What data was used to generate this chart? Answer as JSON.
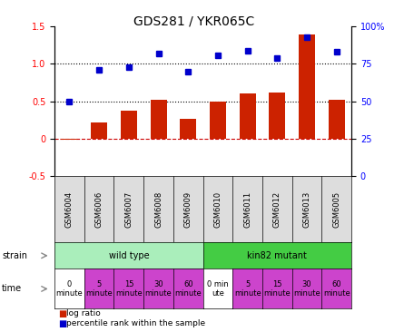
{
  "title": "GDS281 / YKR065C",
  "samples": [
    "GSM6004",
    "GSM6006",
    "GSM6007",
    "GSM6008",
    "GSM6009",
    "GSM6010",
    "GSM6011",
    "GSM6012",
    "GSM6013",
    "GSM6005"
  ],
  "log_ratio": [
    -0.02,
    0.22,
    0.37,
    0.52,
    0.27,
    0.5,
    0.6,
    0.62,
    1.4,
    0.52
  ],
  "percentile_pct": [
    50,
    71,
    73,
    82,
    70,
    81,
    84,
    79,
    93,
    83
  ],
  "bar_color": "#cc2200",
  "dot_color": "#0000cc",
  "ylim_left": [
    -0.5,
    1.5
  ],
  "ylim_right": [
    0,
    100
  ],
  "yticks_left": [
    -0.5,
    0.0,
    0.5,
    1.0,
    1.5
  ],
  "ytick_labels_left": [
    "-0.5",
    "0",
    "0.5",
    "1.0",
    "1.5"
  ],
  "yticks_right": [
    0,
    25,
    50,
    75,
    100
  ],
  "ytick_labels_right": [
    "0",
    "25",
    "50",
    "75",
    "100%"
  ],
  "hline_0_color": "#cc0000",
  "hline_0_style": "--",
  "hline_05_color": "black",
  "hline_05_style": ":",
  "hline_10_color": "black",
  "hline_10_style": ":",
  "strain_wild_label": "wild type",
  "strain_wild_color": "#aaeebb",
  "strain_kin82_label": "kin82 mutant",
  "strain_kin82_color": "#44cc44",
  "time_bg_white": "#ffffff",
  "time_bg_purple": "#cc44cc",
  "time_texts": [
    "0\nminute",
    "5\nminute",
    "15\nminute",
    "30\nminute",
    "60\nminute",
    "0 min\nute",
    "5\nminute",
    "15\nminute",
    "30\nminute",
    "60\nminute"
  ],
  "time_colors": [
    "black",
    "black",
    "black",
    "black",
    "black",
    "black",
    "black",
    "black",
    "black",
    "black"
  ],
  "time_bg": [
    "#ffffff",
    "#cc44cc",
    "#cc44cc",
    "#cc44cc",
    "#cc44cc",
    "#ffffff",
    "#cc44cc",
    "#cc44cc",
    "#cc44cc",
    "#cc44cc"
  ],
  "legend_bar_label": "log ratio",
  "legend_dot_label": "percentile rank within the sample",
  "legend_bar_color": "#cc2200",
  "legend_dot_color": "#0000cc",
  "bar_width": 0.55,
  "dot_size": 5,
  "title_fontsize": 10,
  "axis_fontsize": 7,
  "sample_label_fontsize": 6,
  "strain_fontsize": 7,
  "time_fontsize": 6
}
